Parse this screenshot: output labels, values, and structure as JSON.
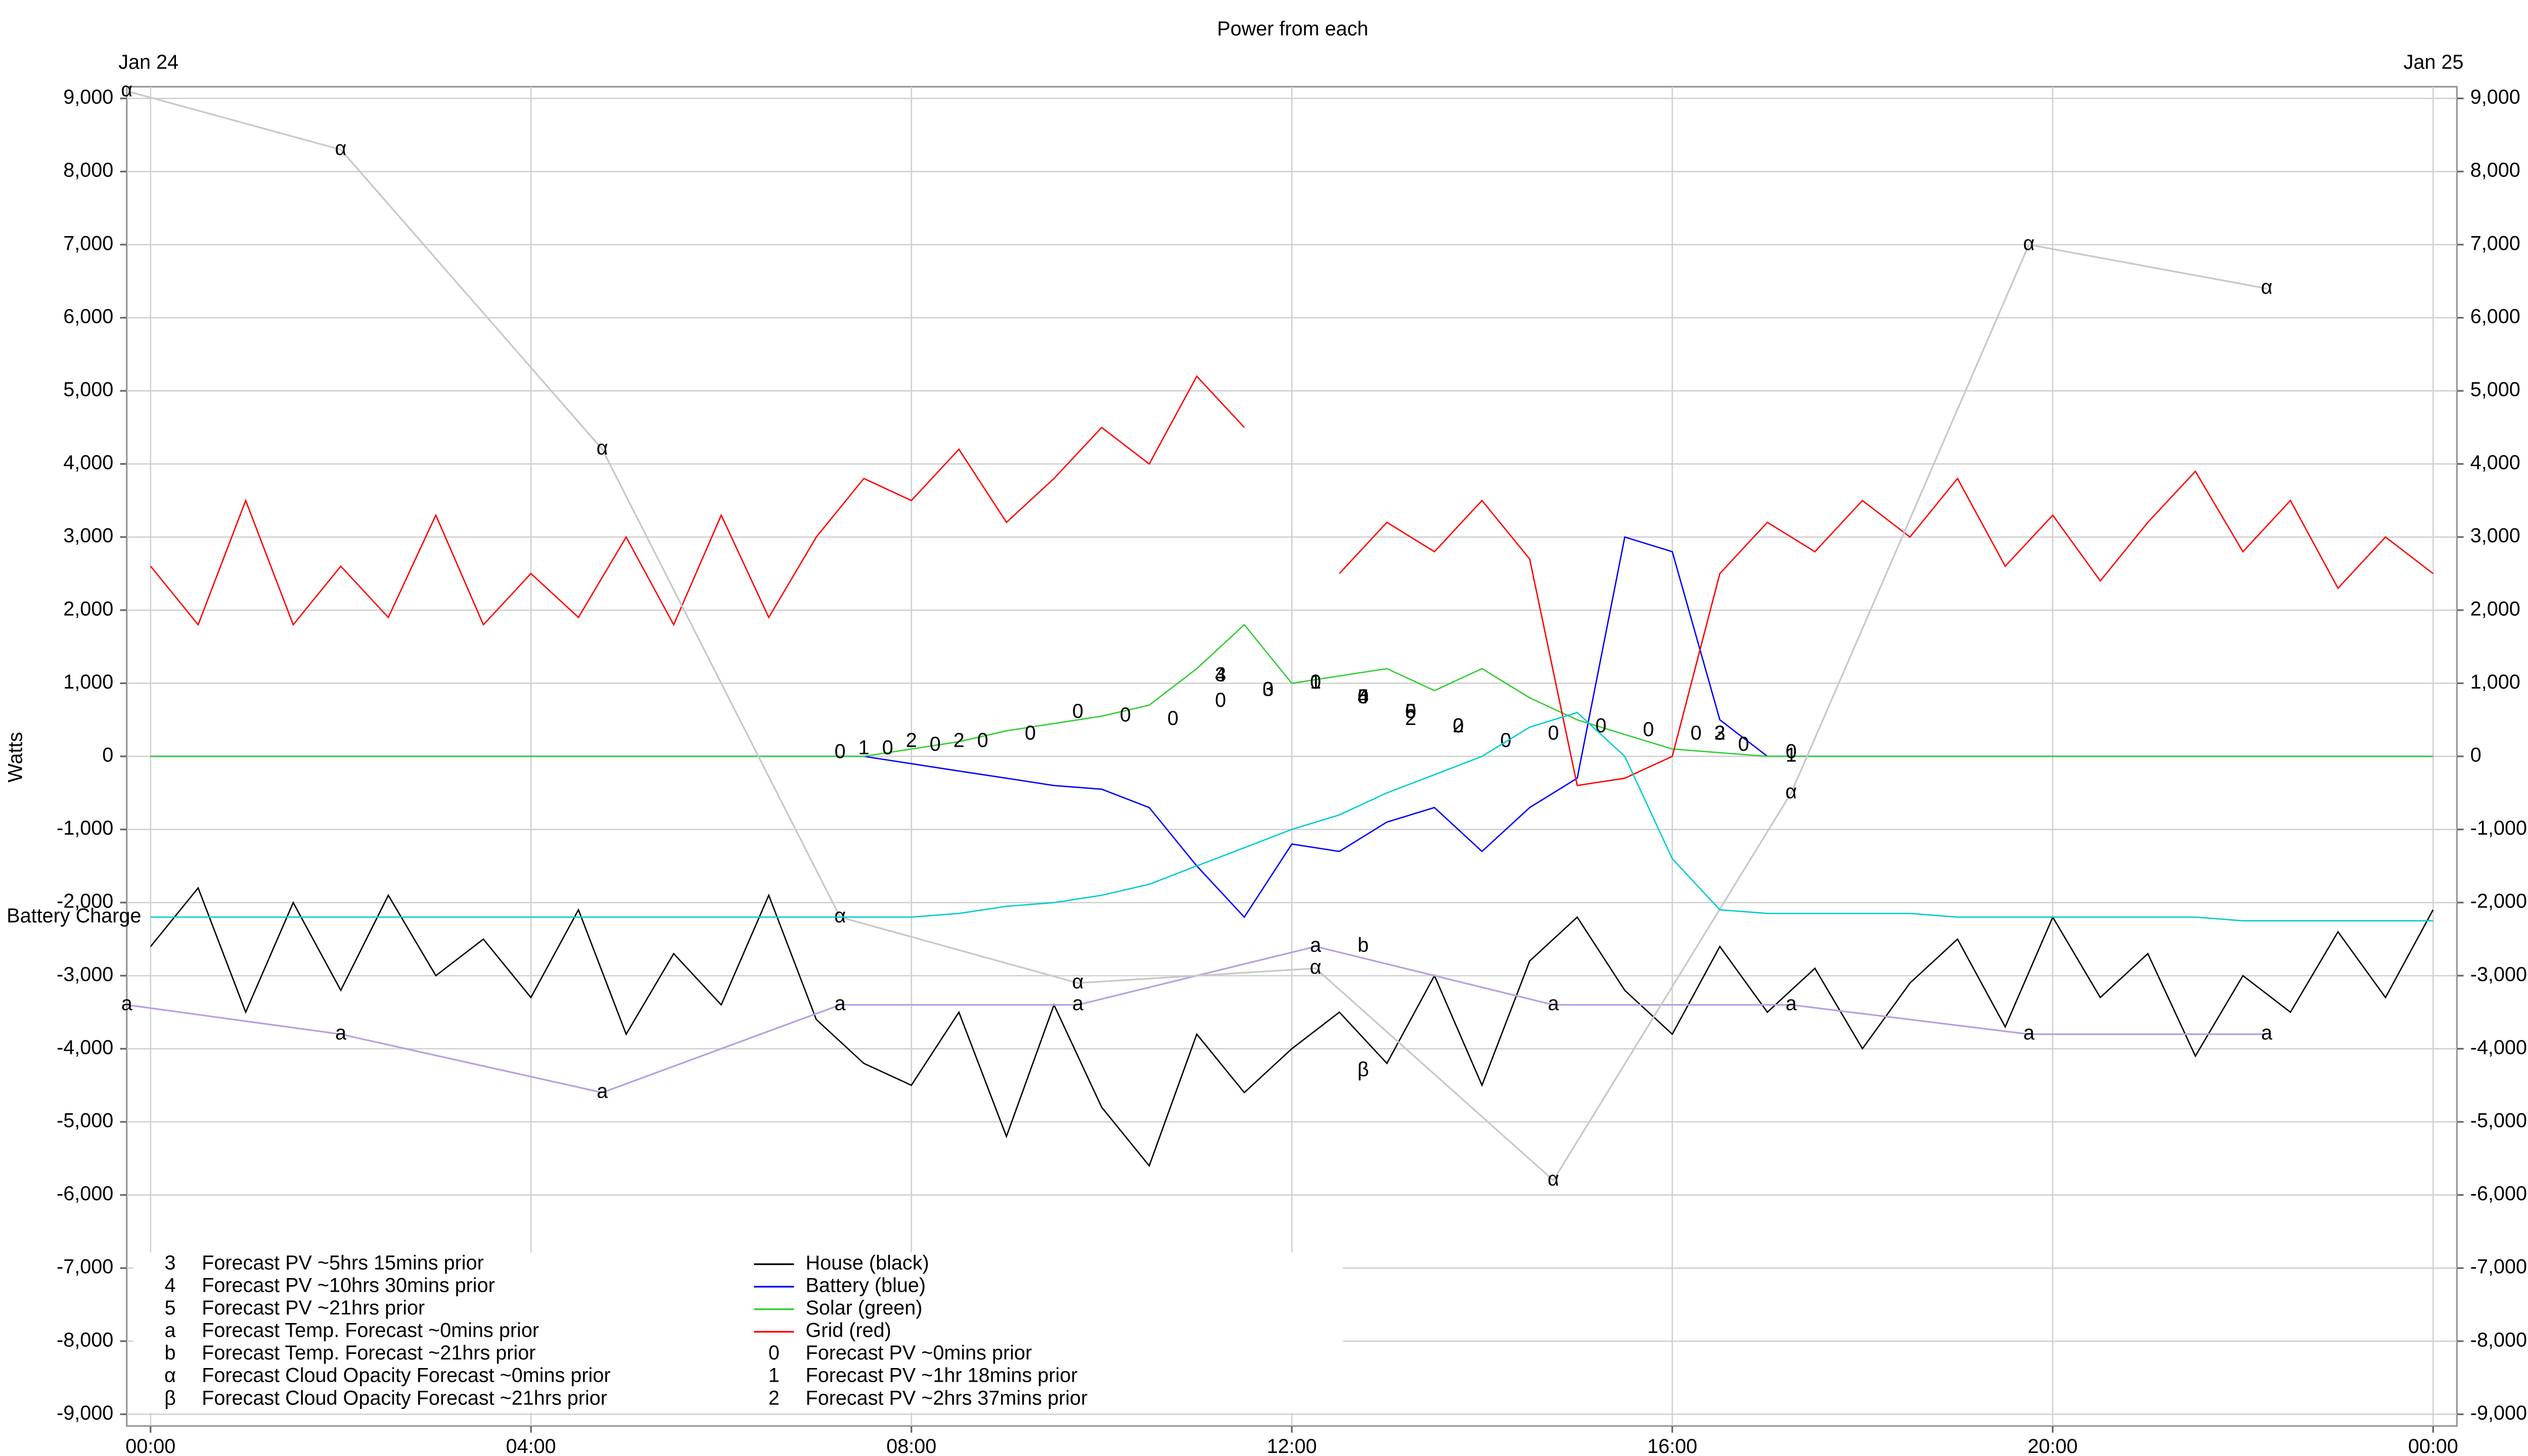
{
  "chart_data": {
    "type": "line",
    "title": "Power from each",
    "date_start": "Jan 24",
    "date_end": "Jan 25",
    "ylabel": "Watts",
    "grid": true,
    "xlim": [
      -0.25,
      24.25
    ],
    "xticks": [
      {
        "value": 0,
        "label": "00:00"
      },
      {
        "value": 4,
        "label": "04:00"
      },
      {
        "value": 8,
        "label": "08:00"
      },
      {
        "value": 12,
        "label": "12:00"
      },
      {
        "value": 16,
        "label": "16:00"
      },
      {
        "value": 20,
        "label": "20:00"
      },
      {
        "value": 24,
        "label": "00:00"
      }
    ],
    "ylim": [
      -9160,
      9160
    ],
    "yticks": [
      {
        "value": 9000,
        "label": "9,000"
      },
      {
        "value": 8000,
        "label": "8,000"
      },
      {
        "value": 7000,
        "label": "7,000"
      },
      {
        "value": 6000,
        "label": "6,000"
      },
      {
        "value": 5000,
        "label": "5,000"
      },
      {
        "value": 4000,
        "label": "4,000"
      },
      {
        "value": 3000,
        "label": "3,000"
      },
      {
        "value": 2000,
        "label": "2,000"
      },
      {
        "value": 1000,
        "label": "1,000"
      },
      0,
      {
        "value": -1000,
        "label": "-1,000"
      },
      {
        "value": -2000,
        "label": "-2,000"
      },
      {
        "value": -3000,
        "label": "-3,000"
      },
      {
        "value": -4000,
        "label": "-4,000"
      },
      {
        "value": -5000,
        "label": "-5,000"
      },
      {
        "value": -6000,
        "label": "-6,000"
      },
      {
        "value": -7000,
        "label": "-7,000"
      },
      {
        "value": -8000,
        "label": "-8,000"
      },
      {
        "value": -9000,
        "label": "-9,000"
      }
    ],
    "x": [
      0,
      0.5,
      1,
      1.5,
      2,
      2.5,
      3,
      3.5,
      4,
      4.5,
      5,
      5.5,
      6,
      6.5,
      7,
      7.5,
      8,
      8.5,
      9,
      9.5,
      10,
      10.5,
      11,
      11.5,
      12,
      12.5,
      13,
      13.5,
      14,
      14.5,
      15,
      15.5,
      16,
      16.5,
      17,
      17.5,
      18,
      18.5,
      19,
      19.5,
      20,
      20.5,
      21,
      21.5,
      22,
      22.5,
      23,
      23.5,
      24
    ],
    "series": [
      {
        "name": "House (black)",
        "color": "#000000",
        "values": [
          -2600,
          -1800,
          -3500,
          -2000,
          -3200,
          -1900,
          -3000,
          -2500,
          -3300,
          -2100,
          -3800,
          -2700,
          -3400,
          -1900,
          -3600,
          -4200,
          -4500,
          -3500,
          -5200,
          -3400,
          -4800,
          -5600,
          -3800,
          -4600,
          -4000,
          -3500,
          -4200,
          -3000,
          -4500,
          -2800,
          -2200,
          -3200,
          -3800,
          -2600,
          -3500,
          -2900,
          -4000,
          -3100,
          -2500,
          -3700,
          -2200,
          -3300,
          -2700,
          -4100,
          -3000,
          -3500,
          -2400,
          -3300,
          -2100
        ]
      },
      {
        "name": "Battery (blue)",
        "color": "#0000ff",
        "values": [
          0,
          0,
          0,
          0,
          0,
          0,
          0,
          0,
          0,
          0,
          0,
          0,
          0,
          0,
          0,
          0,
          -100,
          -200,
          -300,
          -400,
          -450,
          -700,
          -1500,
          -2200,
          -1200,
          -1300,
          -900,
          -700,
          -1300,
          -700,
          -300,
          3000,
          2800,
          500,
          0,
          0,
          0,
          0,
          0,
          0,
          0,
          0,
          0,
          0,
          0,
          0,
          0,
          0,
          0
        ]
      },
      {
        "name": "Solar (green)",
        "color": "#33cc33",
        "values": [
          0,
          0,
          0,
          0,
          0,
          0,
          0,
          0,
          0,
          0,
          0,
          0,
          0,
          0,
          0,
          0,
          100,
          200,
          350,
          450,
          550,
          700,
          1200,
          1800,
          1000,
          1100,
          1200,
          900,
          1200,
          800,
          500,
          300,
          100,
          50,
          0,
          0,
          0,
          0,
          0,
          0,
          0,
          0,
          0,
          0,
          0,
          0,
          0,
          0,
          0
        ]
      },
      {
        "name": "Grid (red)",
        "color": "#ff0000",
        "values": [
          2600,
          1800,
          3500,
          1800,
          2600,
          1900,
          3300,
          1800,
          2500,
          1900,
          3000,
          1800,
          3300,
          1900,
          3000,
          3800,
          3500,
          4200,
          3200,
          3800,
          4500,
          4000,
          5200,
          4500,
          null,
          2500,
          3200,
          2800,
          3500,
          2700,
          -400,
          -300,
          0,
          2500,
          3200,
          2800,
          3500,
          3000,
          3800,
          2600,
          3300,
          2400,
          3200,
          3900,
          2800,
          3500,
          2300,
          3000,
          2500
        ]
      },
      {
        "name": "Forecast PV ~0mins prior",
        "symbol": "0",
        "color": "#000000",
        "x": [
          7.25,
          7.75,
          8.25,
          8.75,
          9.25,
          9.75,
          10.25,
          10.75,
          11.25,
          11.75,
          12.25,
          12.75,
          13.25,
          13.75,
          14.25,
          14.75,
          15.25,
          15.75,
          16.25,
          16.75,
          17.25
        ],
        "values": [
          50,
          100,
          150,
          200,
          300,
          600,
          550,
          500,
          750,
          900,
          1000,
          800,
          600,
          400,
          200,
          300,
          400,
          350,
          300,
          150,
          50
        ]
      },
      {
        "name": "Forecast PV ~1hr 18mins prior",
        "symbol": "1",
        "color": "#000000",
        "x": [
          7.5,
          12.25,
          17.25
        ],
        "values": [
          100,
          1000,
          0
        ]
      },
      {
        "name": "Forecast PV ~2hrs 37mins prior",
        "symbol": "2",
        "color": "#000000",
        "x": [
          8,
          8.5,
          13.25,
          13.75,
          16.5
        ],
        "values": [
          200,
          200,
          500,
          400,
          300
        ]
      },
      {
        "name": "Forecast PV ~5hrs 15mins prior",
        "symbol": "3",
        "color": "#000000",
        "x": [
          11.25,
          11.75,
          16.5
        ],
        "values": [
          1100,
          900,
          300
        ]
      },
      {
        "name": "Forecast PV ~10hrs 30mins prior",
        "symbol": "4",
        "color": "#000000",
        "x": [
          11.25,
          12.75
        ],
        "values": [
          1100,
          800
        ]
      },
      {
        "name": "Forecast PV ~21hrs prior",
        "symbol": "5",
        "color": "#000000",
        "x": [
          12.75,
          13.25
        ],
        "values": [
          800,
          600
        ]
      },
      {
        "name": "Forecast Temp. Forecast ~0mins prior",
        "symbol": "a",
        "color": "#b8a0e0",
        "x": [
          -0.25,
          2,
          4.75,
          7.25,
          9.75,
          12.25,
          14.75,
          17.25,
          19.75,
          22.25
        ],
        "values": [
          -3400,
          -3800,
          -4600,
          -3400,
          -3400,
          -2600,
          -3400,
          -3400,
          -3800,
          -3800
        ]
      },
      {
        "name": "Forecast Temp. Forecast ~21hrs prior",
        "symbol": "b",
        "color": "#b8a0e0",
        "x": [
          12.75
        ],
        "values": [
          -2600
        ]
      },
      {
        "name": "Forecast Cloud Opacity Forecast ~0mins prior",
        "symbol": "α",
        "color": "#c8c8c8",
        "x": [
          -0.25,
          2,
          4.75,
          7.25,
          9.75,
          12.25,
          14.75,
          17.25,
          19.75,
          22.25
        ],
        "values": [
          9100,
          8300,
          4200,
          -2200,
          -3100,
          -2900,
          -5800,
          -500,
          7000,
          6400
        ]
      },
      {
        "name": "Forecast Cloud Opacity Forecast ~21hrs prior",
        "symbol": "β",
        "color": "#c8c8c8",
        "x": [
          12.75
        ],
        "values": [
          -4300
        ]
      },
      {
        "name": "Battery Charge",
        "color": "#00cccc",
        "legend": false,
        "values": [
          -2200,
          -2200,
          -2200,
          -2200,
          -2200,
          -2200,
          -2200,
          -2200,
          -2200,
          -2200,
          -2200,
          -2200,
          -2200,
          -2200,
          -2200,
          -2200,
          -2200,
          -2150,
          -2050,
          -2000,
          -1900,
          -1750,
          -1500,
          -1250,
          -1000,
          -800,
          -500,
          -250,
          0,
          400,
          600,
          0,
          -1400,
          -2100,
          -2150,
          -2150,
          -2150,
          -2150,
          -2200,
          -2200,
          -2200,
          -2200,
          -2200,
          -2200,
          -2250,
          -2250,
          -2250,
          -2250,
          -2250
        ]
      }
    ]
  }
}
